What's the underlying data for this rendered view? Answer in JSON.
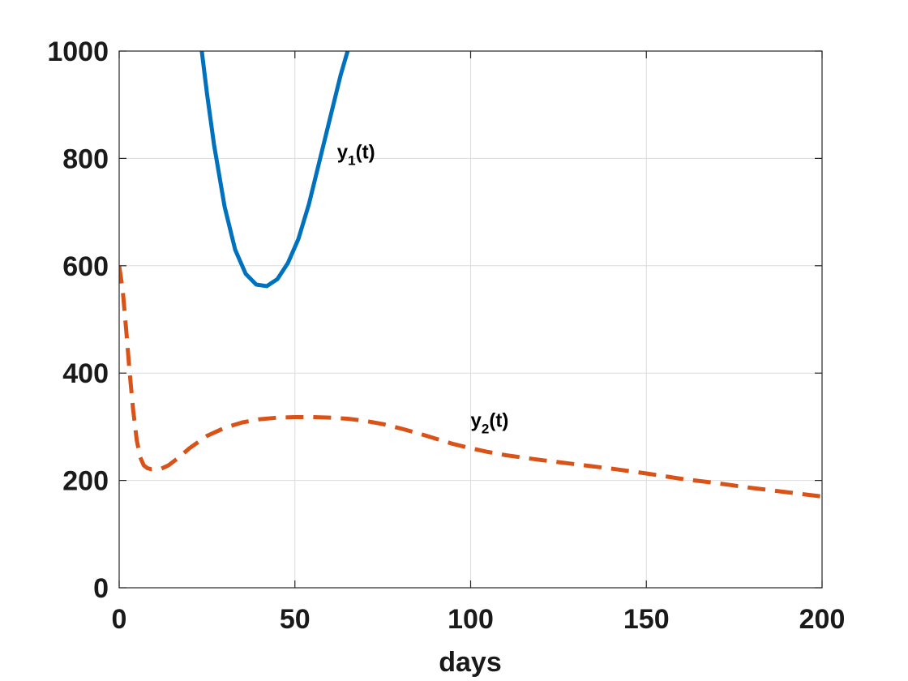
{
  "chart_data": {
    "type": "line",
    "xlabel": "days",
    "ylabel": "",
    "title": "",
    "xlim": [
      0,
      200
    ],
    "ylim": [
      0,
      1000
    ],
    "xticks": [
      0,
      50,
      100,
      150,
      200
    ],
    "yticks": [
      0,
      200,
      400,
      600,
      800,
      1000
    ],
    "grid": true,
    "legend": "none",
    "series": [
      {
        "name": "y1(t)",
        "label_base": "y",
        "label_sub": "1",
        "label_tail": "(t)",
        "label_at": [
          62,
          800
        ],
        "color": "#0072BD",
        "style": "solid",
        "x": [
          23.5,
          25,
          27,
          30,
          33,
          36,
          39,
          42,
          45,
          48,
          51,
          54,
          57,
          60,
          63,
          65
        ],
        "y": [
          1000,
          920,
          825,
          710,
          630,
          585,
          565,
          562,
          575,
          605,
          650,
          715,
          795,
          875,
          955,
          1000
        ]
      },
      {
        "name": "y2(t)",
        "label_base": "y",
        "label_sub": "2",
        "label_tail": "(t)",
        "label_at": [
          100,
          300
        ],
        "color": "#D95319",
        "style": "dashed",
        "x": [
          0,
          1,
          2,
          3,
          4,
          5,
          6,
          7,
          8,
          9,
          10,
          11,
          12,
          14,
          17,
          20,
          25,
          30,
          35,
          40,
          45,
          50,
          55,
          60,
          65,
          70,
          75,
          80,
          85,
          90,
          95,
          100,
          105,
          110,
          120,
          130,
          140,
          150,
          160,
          170,
          180,
          190,
          200
        ],
        "y": [
          600,
          555,
          480,
          400,
          330,
          275,
          243,
          228,
          223,
          221,
          221,
          221,
          222,
          228,
          243,
          260,
          283,
          298,
          308,
          314,
          317,
          318,
          318,
          317,
          315,
          311,
          305,
          297,
          288,
          278,
          268,
          260,
          253,
          247,
          238,
          230,
          222,
          213,
          203,
          195,
          186,
          178,
          170
        ]
      }
    ]
  }
}
